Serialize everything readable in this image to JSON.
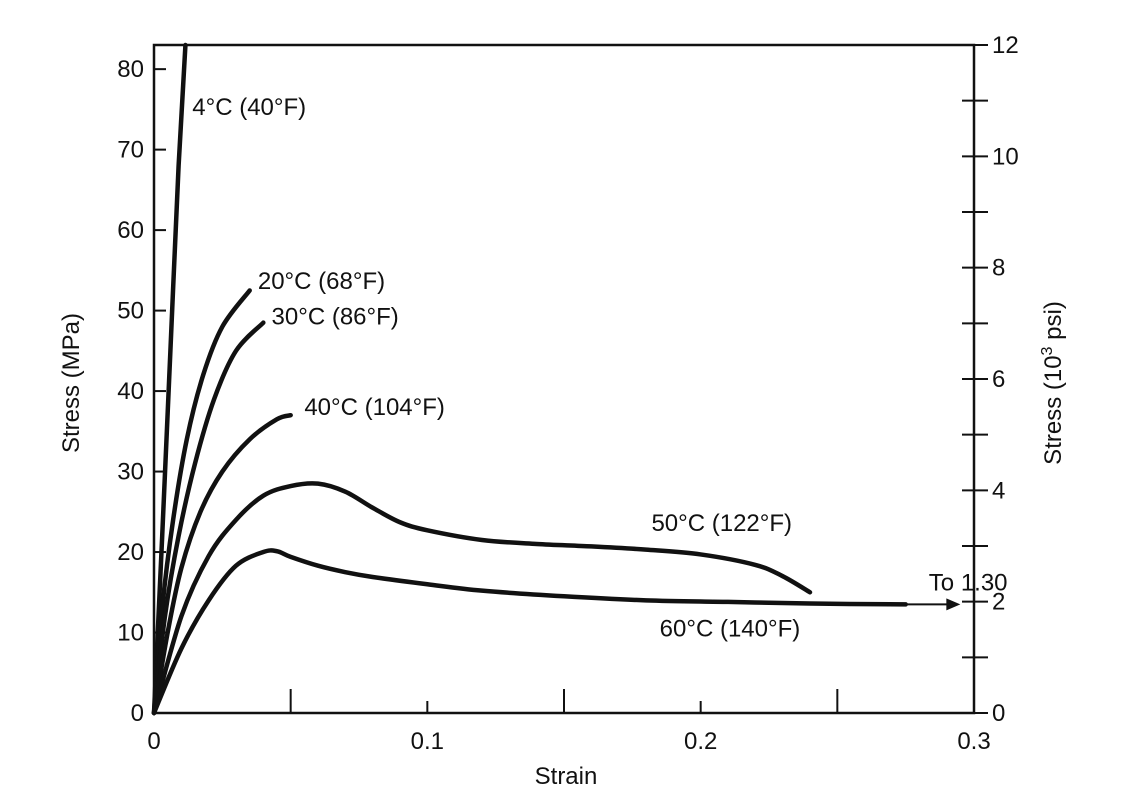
{
  "chart_data": {
    "type": "line",
    "title": "",
    "xlabel": "Strain",
    "ylabel": "Stress (MPa)",
    "y2label_main": "Stress (10",
    "y2label_sup": "3",
    "y2label_end": " psi)",
    "xlim": [
      0,
      0.3
    ],
    "ylim": [
      0,
      83
    ],
    "y2lim": [
      0,
      12
    ],
    "x_ticks": [
      0,
      0.1,
      0.2,
      0.3
    ],
    "x_tick_labels": [
      "0",
      "0.1",
      "0.2",
      "0.3"
    ],
    "y_ticks": [
      0,
      10,
      20,
      30,
      40,
      50,
      60,
      70,
      80
    ],
    "y_tick_labels": [
      "0",
      "10",
      "20",
      "30",
      "40",
      "50",
      "60",
      "70",
      "80"
    ],
    "y2_ticks": [
      0,
      2,
      4,
      6,
      8,
      10,
      12
    ],
    "y2_tick_labels": [
      "0",
      "2",
      "4",
      "6",
      "8",
      "10",
      "12"
    ],
    "y2_minor_ticks": [
      1,
      3,
      5,
      7,
      9,
      11
    ],
    "x_minor_ticks": [
      0.05,
      0.15,
      0.25
    ],
    "grid": false,
    "series": [
      {
        "name": "4°C (40°F)",
        "x": [
          0,
          0.003,
          0.006,
          0.009,
          0.0115
        ],
        "y": [
          0,
          22,
          45,
          68,
          83
        ]
      },
      {
        "name": "20°C (68°F)",
        "x": [
          0,
          0.003,
          0.007,
          0.012,
          0.018,
          0.025,
          0.035
        ],
        "y": [
          0,
          13,
          24,
          34,
          42,
          48,
          52.5
        ]
      },
      {
        "name": "30°C (86°F)",
        "x": [
          0,
          0.004,
          0.009,
          0.015,
          0.022,
          0.03,
          0.04
        ],
        "y": [
          0,
          12,
          22,
          31,
          39,
          45,
          48.5
        ]
      },
      {
        "name": "40°C (104°F)",
        "x": [
          0,
          0.005,
          0.01,
          0.017,
          0.025,
          0.035,
          0.045,
          0.05
        ],
        "y": [
          0,
          10,
          18,
          25,
          30,
          34,
          36.5,
          37
        ]
      },
      {
        "name": "50°C (122°F)",
        "x": [
          0,
          0.01,
          0.02,
          0.03,
          0.04,
          0.05,
          0.06,
          0.07,
          0.08,
          0.09,
          0.1,
          0.12,
          0.14,
          0.16,
          0.18,
          0.2,
          0.22,
          0.23,
          0.24
        ],
        "y": [
          0,
          12,
          19.5,
          24,
          27,
          28.2,
          28.5,
          27.5,
          25.5,
          23.7,
          22.7,
          21.5,
          21,
          20.7,
          20.3,
          19.7,
          18.4,
          17,
          15
        ]
      },
      {
        "name": "60°C (140°F)",
        "x": [
          0,
          0.01,
          0.02,
          0.03,
          0.04,
          0.045,
          0.05,
          0.06,
          0.07,
          0.08,
          0.1,
          0.12,
          0.15,
          0.18,
          0.21,
          0.24,
          0.275
        ],
        "y": [
          0,
          8,
          14,
          18.3,
          20,
          20.1,
          19.4,
          18.3,
          17.5,
          16.9,
          16,
          15.2,
          14.5,
          14,
          13.8,
          13.6,
          13.5
        ]
      }
    ],
    "series_labels": [
      {
        "text": "4°C (40°F)",
        "x": 0.014,
        "y": 74.3
      },
      {
        "text": "20°C (68°F)",
        "x": 0.038,
        "y": 52.7
      },
      {
        "text": "30°C (86°F)",
        "x": 0.043,
        "y": 48.3
      },
      {
        "text": "40°C (104°F)",
        "x": 0.055,
        "y": 37
      },
      {
        "text": "50°C (122°F)",
        "x": 0.182,
        "y": 22.6
      },
      {
        "text": "60°C (140°F)",
        "x": 0.185,
        "y": 9.5
      }
    ],
    "annotation": {
      "text": "To 1.30",
      "x": 0.252,
      "y": 15.2
    },
    "arrow": {
      "x_from": 0.275,
      "x_to": 0.295,
      "y": 13.5
    }
  }
}
